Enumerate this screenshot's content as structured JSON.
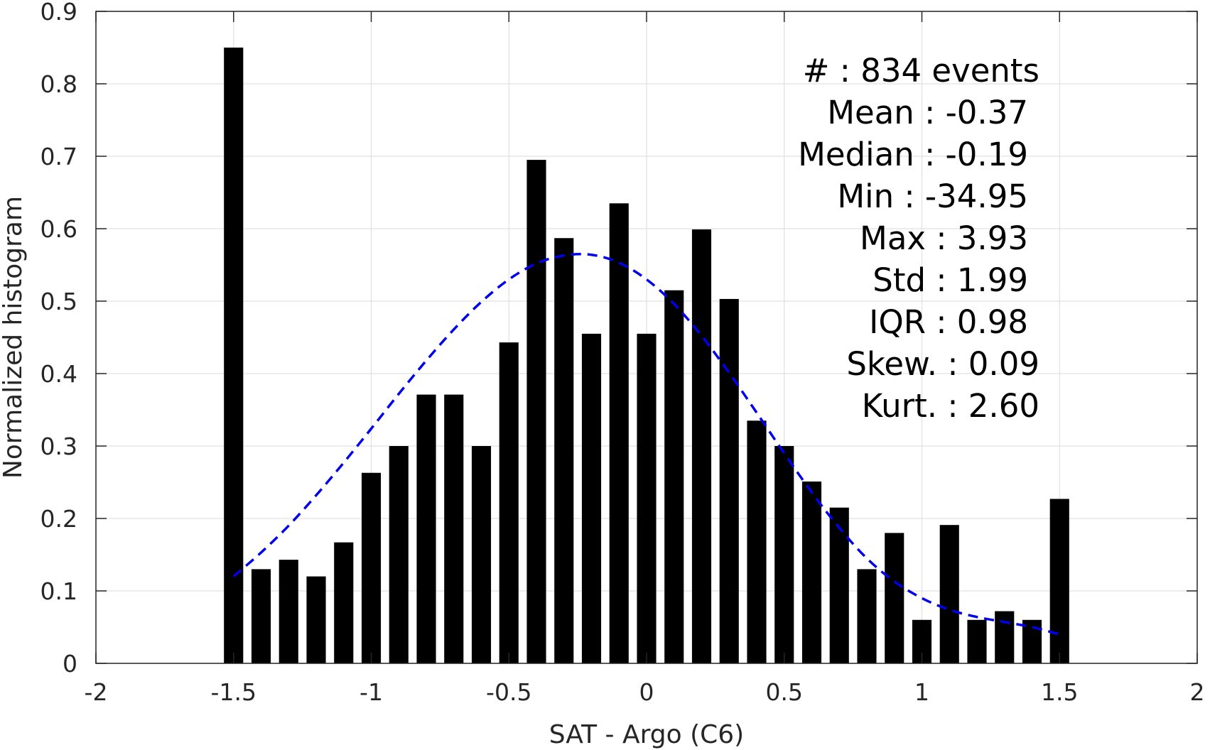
{
  "chart_data": {
    "type": "bar",
    "title": "",
    "xlabel": "SAT - Argo (C6)",
    "ylabel": "Normalized histogram",
    "xlim": [
      -2,
      2
    ],
    "ylim": [
      0,
      0.9
    ],
    "grid": true,
    "xticks": [
      -2,
      -1.5,
      -1,
      -0.5,
      0,
      0.5,
      1,
      1.5,
      2
    ],
    "xtick_labels": [
      "-2",
      "-1.5",
      "-1",
      "-0.5",
      "0",
      "0.5",
      "1",
      "1.5",
      "2"
    ],
    "yticks": [
      0,
      0.1,
      0.2,
      0.3,
      0.4,
      0.5,
      0.6,
      0.7,
      0.8,
      0.9
    ],
    "ytick_labels": [
      "0",
      "0.1",
      "0.2",
      "0.3",
      "0.4",
      "0.5",
      "0.6",
      "0.7",
      "0.8",
      "0.9"
    ],
    "bar_color": "#000000",
    "bar_width": 0.07,
    "bins": [
      -1.5,
      -1.4,
      -1.3,
      -1.2,
      -1.1,
      -1.0,
      -0.9,
      -0.8,
      -0.7,
      -0.6,
      -0.5,
      -0.4,
      -0.3,
      -0.2,
      -0.1,
      0.0,
      0.1,
      0.2,
      0.3,
      0.4,
      0.5,
      0.6,
      0.7,
      0.8,
      0.9,
      1.0,
      1.1,
      1.2,
      1.3,
      1.4,
      1.5
    ],
    "values": [
      0.85,
      0.13,
      0.143,
      0.12,
      0.167,
      0.263,
      0.3,
      0.371,
      0.371,
      0.3,
      0.443,
      0.695,
      0.587,
      0.455,
      0.635,
      0.455,
      0.515,
      0.599,
      0.503,
      0.335,
      0.3,
      0.251,
      0.215,
      0.13,
      0.18,
      0.06,
      0.191,
      0.06,
      0.072,
      0.06,
      0.227
    ],
    "fit_curve": {
      "style": "dashed",
      "color": "#0000ee",
      "x": [
        -1.5,
        -1.4,
        -1.3,
        -1.2,
        -1.1,
        -1.0,
        -0.9,
        -0.8,
        -0.7,
        -0.6,
        -0.5,
        -0.4,
        -0.3,
        -0.2,
        -0.1,
        0.0,
        0.1,
        0.2,
        0.3,
        0.4,
        0.5,
        0.6,
        0.7,
        0.8,
        0.9,
        1.0,
        1.1,
        1.2,
        1.3,
        1.4,
        1.5
      ],
      "y": [
        0.12,
        0.153,
        0.19,
        0.232,
        0.277,
        0.324,
        0.372,
        0.418,
        0.461,
        0.499,
        0.53,
        0.552,
        0.563,
        0.564,
        0.553,
        0.53,
        0.496,
        0.452,
        0.401,
        0.346,
        0.29,
        0.236,
        0.187,
        0.145,
        0.113,
        0.09,
        0.074,
        0.064,
        0.057,
        0.05,
        0.04
      ]
    },
    "annotation": {
      "lines": [
        "#  : 834 events",
        "Mean : -0.37",
        "Median : -0.19",
        "Min : -34.95",
        "Max : 3.93",
        "Std : 1.99",
        "IQR : 0.98",
        "Skew. : 0.09",
        "Kurt. : 2.60"
      ]
    }
  }
}
